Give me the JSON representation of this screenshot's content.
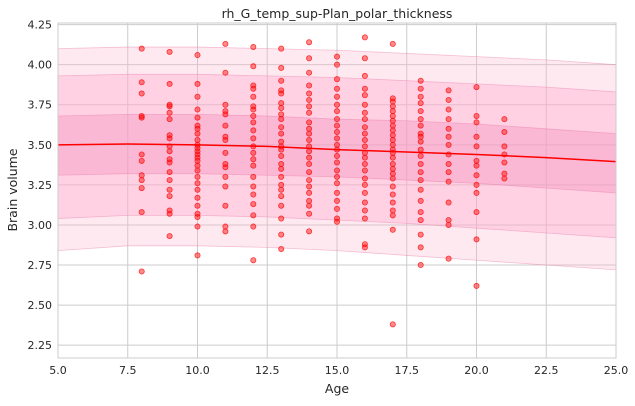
{
  "chart_data": {
    "type": "scatter",
    "title": "rh_G_temp_sup-Plan_polar_thickness",
    "xlabel": "Age",
    "ylabel": "Brain volume",
    "xlim": [
      5.0,
      25.0
    ],
    "ylim": [
      2.17,
      4.26
    ],
    "grid": true,
    "legend": "none",
    "x_ticks": [
      "5.0",
      "7.5",
      "10.0",
      "12.5",
      "15.0",
      "17.5",
      "20.0",
      "22.5",
      "25.0"
    ],
    "y_ticks": [
      "2.25",
      "2.50",
      "2.75",
      "3.00",
      "3.25",
      "3.50",
      "3.75",
      "4.00",
      "4.25"
    ],
    "x_tick_values": [
      5.0,
      7.5,
      10.0,
      12.5,
      15.0,
      17.5,
      20.0,
      22.5,
      25.0
    ],
    "y_tick_values": [
      2.25,
      2.5,
      2.75,
      3.0,
      3.25,
      3.5,
      3.75,
      4.0,
      4.25
    ],
    "colors": {
      "points": "#ff0000",
      "trend": "#ff0000",
      "band_outer": "#ffb6d2",
      "band_middle": "#ffa6c9",
      "band_inner": "#f08ab8",
      "grid": "#cccccc",
      "band_edge": "#e87aa8"
    },
    "trend": {
      "x": [
        5.0,
        7.5,
        10.0,
        12.5,
        15.0,
        17.5,
        20.0,
        22.5,
        25.0
      ],
      "y": [
        3.5,
        3.505,
        3.5,
        3.49,
        3.47,
        3.455,
        3.44,
        3.42,
        3.395
      ]
    },
    "bands": [
      {
        "x": [
          5.0,
          7.5,
          10.0,
          12.5,
          15.0,
          17.5,
          20.0,
          22.5,
          25.0
        ],
        "lower": [
          2.84,
          2.87,
          2.87,
          2.86,
          2.84,
          2.81,
          2.78,
          2.75,
          2.72
        ],
        "upper": [
          4.1,
          4.11,
          4.11,
          4.1,
          4.09,
          4.07,
          4.05,
          4.03,
          4.0
        ]
      },
      {
        "x": [
          5.0,
          7.5,
          10.0,
          12.5,
          15.0,
          17.5,
          20.0,
          22.5,
          25.0
        ],
        "lower": [
          3.04,
          3.06,
          3.06,
          3.05,
          3.03,
          3.01,
          2.98,
          2.95,
          2.92
        ],
        "upper": [
          3.93,
          3.94,
          3.94,
          3.93,
          3.92,
          3.9,
          3.88,
          3.86,
          3.83
        ]
      },
      {
        "x": [
          5.0,
          7.5,
          10.0,
          12.5,
          15.0,
          17.5,
          20.0,
          22.5,
          25.0
        ],
        "lower": [
          3.31,
          3.32,
          3.32,
          3.31,
          3.3,
          3.28,
          3.26,
          3.23,
          3.2
        ],
        "upper": [
          3.68,
          3.69,
          3.69,
          3.68,
          3.66,
          3.65,
          3.63,
          3.6,
          3.57
        ]
      }
    ],
    "points": {
      "x": [
        8,
        8,
        8,
        8,
        8,
        8,
        8,
        8,
        8,
        8,
        8,
        8,
        9,
        9,
        9,
        9,
        9,
        9,
        9,
        9,
        9,
        9,
        9,
        9,
        9,
        9,
        9,
        9,
        9,
        9,
        9,
        10,
        10,
        10,
        10,
        10,
        10,
        10,
        10,
        10,
        10,
        10,
        10,
        10,
        10,
        10,
        10,
        10,
        10,
        10,
        10,
        10,
        10,
        10,
        10,
        10,
        10,
        11,
        11,
        11,
        11,
        11,
        11,
        11,
        11,
        11,
        11,
        11,
        11,
        11,
        11,
        11,
        11,
        12,
        12,
        12,
        12,
        12,
        12,
        12,
        12,
        12,
        12,
        12,
        12,
        12,
        12,
        12,
        12,
        12,
        12,
        12,
        12,
        12,
        12,
        13,
        13,
        13,
        13,
        13,
        13,
        13,
        13,
        13,
        13,
        13,
        13,
        13,
        13,
        13,
        13,
        13,
        13,
        13,
        13,
        13,
        13,
        13,
        13,
        13,
        14,
        14,
        14,
        14,
        14,
        14,
        14,
        14,
        14,
        14,
        14,
        14,
        14,
        14,
        14,
        14,
        14,
        14,
        14,
        14,
        14,
        14,
        14,
        14,
        15,
        15,
        15,
        15,
        15,
        15,
        15,
        15,
        15,
        15,
        15,
        15,
        15,
        15,
        15,
        15,
        15,
        15,
        15,
        15,
        15,
        15,
        15,
        16,
        16,
        16,
        16,
        16,
        16,
        16,
        16,
        16,
        16,
        16,
        16,
        16,
        16,
        16,
        16,
        16,
        16,
        16,
        16,
        16,
        16,
        16,
        16,
        17,
        17,
        17,
        17,
        17,
        17,
        17,
        17,
        17,
        17,
        17,
        17,
        17,
        17,
        17,
        17,
        17,
        17,
        17,
        17,
        17,
        17,
        17,
        17,
        17,
        17,
        18,
        18,
        18,
        18,
        18,
        18,
        18,
        18,
        18,
        18,
        18,
        18,
        18,
        18,
        18,
        18,
        18,
        18,
        18,
        18,
        18,
        18,
        19,
        19,
        19,
        19,
        19,
        19,
        19,
        19,
        19,
        19,
        19,
        19,
        19,
        19,
        19,
        20,
        20,
        20,
        20,
        20,
        20,
        20,
        20,
        20,
        20,
        20,
        20,
        20,
        21,
        21,
        21,
        21,
        21,
        21,
        21
      ],
      "y": [
        4.1,
        3.89,
        3.82,
        3.68,
        3.67,
        3.44,
        3.4,
        3.31,
        3.28,
        3.23,
        3.08,
        2.71,
        4.08,
        3.88,
        3.75,
        3.74,
        3.7,
        3.66,
        3.56,
        3.49,
        3.46,
        3.41,
        3.39,
        3.33,
        3.28,
        3.22,
        3.18,
        3.09,
        3.07,
        2.93,
        3.54,
        4.06,
        3.88,
        3.8,
        3.72,
        3.67,
        3.6,
        3.57,
        3.53,
        3.5,
        3.48,
        3.46,
        3.44,
        3.42,
        3.4,
        3.37,
        3.34,
        3.3,
        3.26,
        3.22,
        3.17,
        3.12,
        3.07,
        3.05,
        2.99,
        2.81,
        3.62,
        4.13,
        3.95,
        3.75,
        3.69,
        3.62,
        3.55,
        3.53,
        3.45,
        3.38,
        3.36,
        3.3,
        3.24,
        3.12,
        2.99,
        2.96,
        3.71,
        4.11,
        3.99,
        3.87,
        3.85,
        3.8,
        3.74,
        3.72,
        3.68,
        3.64,
        3.59,
        3.54,
        3.49,
        3.45,
        3.41,
        3.37,
        3.3,
        3.24,
        3.19,
        3.13,
        3.06,
        2.99,
        2.78,
        4.1,
        3.98,
        3.9,
        3.84,
        3.82,
        3.76,
        3.73,
        3.69,
        3.66,
        3.61,
        3.57,
        3.52,
        3.49,
        3.47,
        3.43,
        3.38,
        3.35,
        3.3,
        3.25,
        3.22,
        3.18,
        3.12,
        3.04,
        2.94,
        2.85,
        4.14,
        4.04,
        3.95,
        3.87,
        3.82,
        3.78,
        3.74,
        3.7,
        3.64,
        3.6,
        3.57,
        3.53,
        3.49,
        3.46,
        3.42,
        3.38,
        3.33,
        3.28,
        3.24,
        3.2,
        3.15,
        3.12,
        3.07,
        2.96,
        4.05,
        4.0,
        3.91,
        3.85,
        3.8,
        3.75,
        3.71,
        3.66,
        3.62,
        3.58,
        3.54,
        3.5,
        3.47,
        3.43,
        3.39,
        3.34,
        3.3,
        3.26,
        3.2,
        3.15,
        3.1,
        3.04,
        3.02,
        4.17,
        4.04,
        3.93,
        3.85,
        3.81,
        3.75,
        3.7,
        3.66,
        3.61,
        3.57,
        3.53,
        3.49,
        3.45,
        3.42,
        3.38,
        3.34,
        3.29,
        3.25,
        3.2,
        3.14,
        3.09,
        3.04,
        2.88,
        2.86,
        4.13,
        3.79,
        3.77,
        3.74,
        3.71,
        3.68,
        3.65,
        3.62,
        3.59,
        3.56,
        3.53,
        3.5,
        3.47,
        3.45,
        3.42,
        3.38,
        3.35,
        3.32,
        3.29,
        3.24,
        3.19,
        3.14,
        3.09,
        3.06,
        2.97,
        2.38,
        3.9,
        3.85,
        3.8,
        3.76,
        3.71,
        3.66,
        3.62,
        3.57,
        3.52,
        3.47,
        3.43,
        3.38,
        3.33,
        3.28,
        3.22,
        3.15,
        3.08,
        3.03,
        2.94,
        2.86,
        2.75,
        3.55,
        3.84,
        3.78,
        3.72,
        3.66,
        3.6,
        3.55,
        3.5,
        3.44,
        3.38,
        3.33,
        3.27,
        3.14,
        3.03,
        3.0,
        2.79,
        3.86,
        3.68,
        3.64,
        3.55,
        3.49,
        3.4,
        3.37,
        3.31,
        3.25,
        3.2,
        3.08,
        2.91,
        2.62,
        3.66,
        3.58,
        3.49,
        3.44,
        3.39,
        3.29,
        3.32
      ]
    }
  }
}
